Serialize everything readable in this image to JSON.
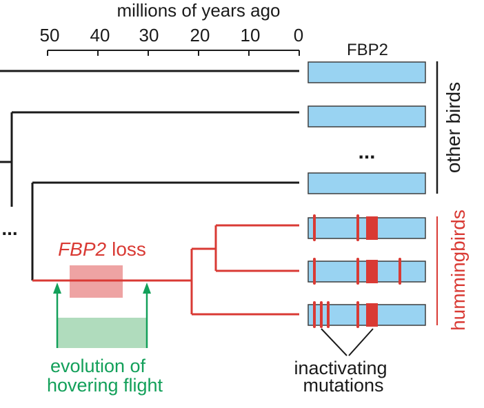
{
  "axis": {
    "title": "millions of years ago",
    "ticks": [
      "50",
      "40",
      "30",
      "20",
      "10",
      "0"
    ]
  },
  "gene_header": "FBP2",
  "ellipsis": "...",
  "left_ellipsis": "...",
  "groups": {
    "other_birds": "other birds",
    "hummingbirds": "hummingbirds"
  },
  "loss_label": {
    "gene": "FBP2",
    "word": "loss"
  },
  "hover_label": {
    "line1": "evolution of",
    "line2": "hovering flight"
  },
  "mutation_label": {
    "line1": "inactivating",
    "line2": "mutations"
  },
  "colors": {
    "red": "#d93a34",
    "green": "#13a05a",
    "gene_fill": "#99d3f2",
    "gene_stroke": "#3d3d3d",
    "mutation_block": "#d93a34",
    "loss_box": "#eea3a3",
    "hover_box": "#b0dcbd"
  }
}
